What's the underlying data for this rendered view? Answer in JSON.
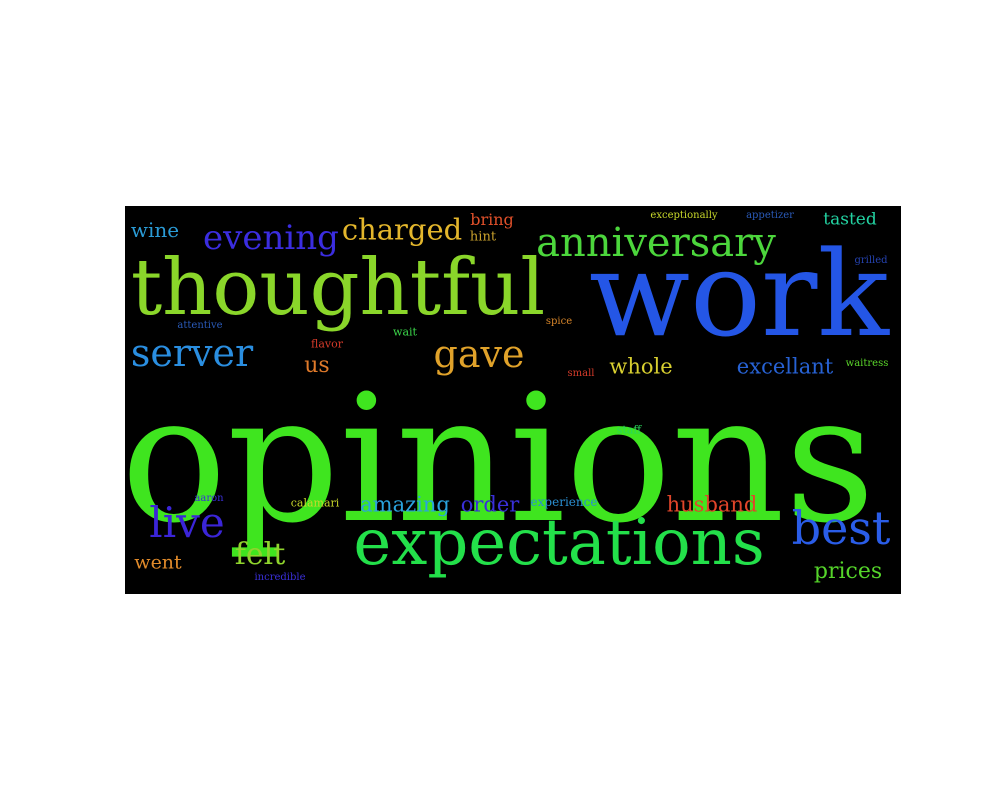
{
  "words": [
    {
      "text": "opinions",
      "color": "#3fe51f"
    },
    {
      "text": "work",
      "color": "#2456e6"
    },
    {
      "text": "thoughtful",
      "color": "#8ad62a"
    },
    {
      "text": "expectations",
      "color": "#23e04a"
    },
    {
      "text": "anniversary",
      "color": "#4cd63c"
    },
    {
      "text": "best",
      "color": "#2a5de8"
    },
    {
      "text": "server",
      "color": "#2a8ee0"
    },
    {
      "text": "evening",
      "color": "#3b2de0"
    },
    {
      "text": "charged",
      "color": "#e3b62c"
    },
    {
      "text": "gave",
      "color": "#e0a22a"
    },
    {
      "text": "live",
      "color": "#3b25d8"
    },
    {
      "text": "felt",
      "color": "#8fd42d"
    },
    {
      "text": "excellant",
      "color": "#2762d4"
    },
    {
      "text": "husband",
      "color": "#e0452a"
    },
    {
      "text": "amazing",
      "color": "#2aa3de"
    },
    {
      "text": "order",
      "color": "#3a2fd8"
    },
    {
      "text": "whole",
      "color": "#d8cf30"
    },
    {
      "text": "prices",
      "color": "#55d42a"
    },
    {
      "text": "wine",
      "color": "#2a9bd6"
    },
    {
      "text": "tasted",
      "color": "#23d3a2"
    },
    {
      "text": "us",
      "color": "#e07a2a"
    },
    {
      "text": "went",
      "color": "#e08a2a"
    },
    {
      "text": "bring",
      "color": "#e0502a"
    },
    {
      "text": "hint",
      "color": "#c9a02c"
    },
    {
      "text": "exceptionally",
      "color": "#c8d82a"
    },
    {
      "text": "appetizer",
      "color": "#2a5ab8"
    },
    {
      "text": "grilled",
      "color": "#2542b0"
    },
    {
      "text": "attentive",
      "color": "#2a5ab8"
    },
    {
      "text": "wait",
      "color": "#3bd64a"
    },
    {
      "text": "flavor",
      "color": "#d63b2a"
    },
    {
      "text": "spice",
      "color": "#d8862a"
    },
    {
      "text": "small",
      "color": "#d63b2a"
    },
    {
      "text": "waitress",
      "color": "#5ad62a"
    },
    {
      "text": "staff",
      "color": "#2ad65a"
    },
    {
      "text": "aaron",
      "color": "#3a2fd8"
    },
    {
      "text": "calamari",
      "color": "#c8d82a"
    },
    {
      "text": "experience",
      "color": "#2a8ed0"
    },
    {
      "text": "incredible",
      "color": "#3a2fd8"
    }
  ]
}
